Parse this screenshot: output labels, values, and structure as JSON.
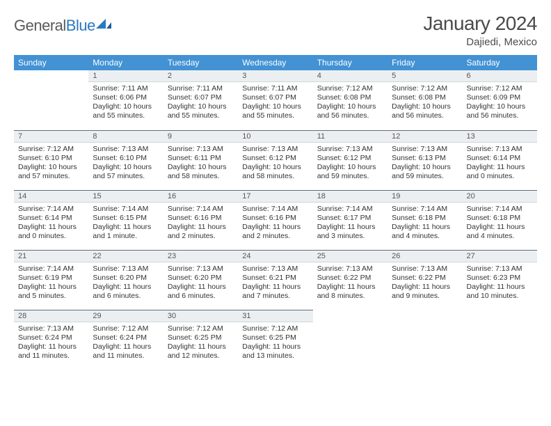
{
  "brand": {
    "word1": "General",
    "word2": "Blue"
  },
  "title": "January 2024",
  "location": "Dajiedi, Mexico",
  "colors": {
    "header_bg": "#4292d4",
    "header_text": "#ffffff",
    "daynum_bg": "#eceff1",
    "row_divider": "#5d6d7e",
    "logo_gray": "#5a5a5a",
    "logo_blue": "#2a7ac0",
    "page_bg": "#ffffff"
  },
  "weekdays": [
    "Sunday",
    "Monday",
    "Tuesday",
    "Wednesday",
    "Thursday",
    "Friday",
    "Saturday"
  ],
  "grid": [
    [
      null,
      {
        "n": "1",
        "sr": "Sunrise: 7:11 AM",
        "ss": "Sunset: 6:06 PM",
        "dl": "Daylight: 10 hours and 55 minutes."
      },
      {
        "n": "2",
        "sr": "Sunrise: 7:11 AM",
        "ss": "Sunset: 6:07 PM",
        "dl": "Daylight: 10 hours and 55 minutes."
      },
      {
        "n": "3",
        "sr": "Sunrise: 7:11 AM",
        "ss": "Sunset: 6:07 PM",
        "dl": "Daylight: 10 hours and 55 minutes."
      },
      {
        "n": "4",
        "sr": "Sunrise: 7:12 AM",
        "ss": "Sunset: 6:08 PM",
        "dl": "Daylight: 10 hours and 56 minutes."
      },
      {
        "n": "5",
        "sr": "Sunrise: 7:12 AM",
        "ss": "Sunset: 6:08 PM",
        "dl": "Daylight: 10 hours and 56 minutes."
      },
      {
        "n": "6",
        "sr": "Sunrise: 7:12 AM",
        "ss": "Sunset: 6:09 PM",
        "dl": "Daylight: 10 hours and 56 minutes."
      }
    ],
    [
      {
        "n": "7",
        "sr": "Sunrise: 7:12 AM",
        "ss": "Sunset: 6:10 PM",
        "dl": "Daylight: 10 hours and 57 minutes."
      },
      {
        "n": "8",
        "sr": "Sunrise: 7:13 AM",
        "ss": "Sunset: 6:10 PM",
        "dl": "Daylight: 10 hours and 57 minutes."
      },
      {
        "n": "9",
        "sr": "Sunrise: 7:13 AM",
        "ss": "Sunset: 6:11 PM",
        "dl": "Daylight: 10 hours and 58 minutes."
      },
      {
        "n": "10",
        "sr": "Sunrise: 7:13 AM",
        "ss": "Sunset: 6:12 PM",
        "dl": "Daylight: 10 hours and 58 minutes."
      },
      {
        "n": "11",
        "sr": "Sunrise: 7:13 AM",
        "ss": "Sunset: 6:12 PM",
        "dl": "Daylight: 10 hours and 59 minutes."
      },
      {
        "n": "12",
        "sr": "Sunrise: 7:13 AM",
        "ss": "Sunset: 6:13 PM",
        "dl": "Daylight: 10 hours and 59 minutes."
      },
      {
        "n": "13",
        "sr": "Sunrise: 7:13 AM",
        "ss": "Sunset: 6:14 PM",
        "dl": "Daylight: 11 hours and 0 minutes."
      }
    ],
    [
      {
        "n": "14",
        "sr": "Sunrise: 7:14 AM",
        "ss": "Sunset: 6:14 PM",
        "dl": "Daylight: 11 hours and 0 minutes."
      },
      {
        "n": "15",
        "sr": "Sunrise: 7:14 AM",
        "ss": "Sunset: 6:15 PM",
        "dl": "Daylight: 11 hours and 1 minute."
      },
      {
        "n": "16",
        "sr": "Sunrise: 7:14 AM",
        "ss": "Sunset: 6:16 PM",
        "dl": "Daylight: 11 hours and 2 minutes."
      },
      {
        "n": "17",
        "sr": "Sunrise: 7:14 AM",
        "ss": "Sunset: 6:16 PM",
        "dl": "Daylight: 11 hours and 2 minutes."
      },
      {
        "n": "18",
        "sr": "Sunrise: 7:14 AM",
        "ss": "Sunset: 6:17 PM",
        "dl": "Daylight: 11 hours and 3 minutes."
      },
      {
        "n": "19",
        "sr": "Sunrise: 7:14 AM",
        "ss": "Sunset: 6:18 PM",
        "dl": "Daylight: 11 hours and 4 minutes."
      },
      {
        "n": "20",
        "sr": "Sunrise: 7:14 AM",
        "ss": "Sunset: 6:18 PM",
        "dl": "Daylight: 11 hours and 4 minutes."
      }
    ],
    [
      {
        "n": "21",
        "sr": "Sunrise: 7:14 AM",
        "ss": "Sunset: 6:19 PM",
        "dl": "Daylight: 11 hours and 5 minutes."
      },
      {
        "n": "22",
        "sr": "Sunrise: 7:13 AM",
        "ss": "Sunset: 6:20 PM",
        "dl": "Daylight: 11 hours and 6 minutes."
      },
      {
        "n": "23",
        "sr": "Sunrise: 7:13 AM",
        "ss": "Sunset: 6:20 PM",
        "dl": "Daylight: 11 hours and 6 minutes."
      },
      {
        "n": "24",
        "sr": "Sunrise: 7:13 AM",
        "ss": "Sunset: 6:21 PM",
        "dl": "Daylight: 11 hours and 7 minutes."
      },
      {
        "n": "25",
        "sr": "Sunrise: 7:13 AM",
        "ss": "Sunset: 6:22 PM",
        "dl": "Daylight: 11 hours and 8 minutes."
      },
      {
        "n": "26",
        "sr": "Sunrise: 7:13 AM",
        "ss": "Sunset: 6:22 PM",
        "dl": "Daylight: 11 hours and 9 minutes."
      },
      {
        "n": "27",
        "sr": "Sunrise: 7:13 AM",
        "ss": "Sunset: 6:23 PM",
        "dl": "Daylight: 11 hours and 10 minutes."
      }
    ],
    [
      {
        "n": "28",
        "sr": "Sunrise: 7:13 AM",
        "ss": "Sunset: 6:24 PM",
        "dl": "Daylight: 11 hours and 11 minutes."
      },
      {
        "n": "29",
        "sr": "Sunrise: 7:12 AM",
        "ss": "Sunset: 6:24 PM",
        "dl": "Daylight: 11 hours and 11 minutes."
      },
      {
        "n": "30",
        "sr": "Sunrise: 7:12 AM",
        "ss": "Sunset: 6:25 PM",
        "dl": "Daylight: 11 hours and 12 minutes."
      },
      {
        "n": "31",
        "sr": "Sunrise: 7:12 AM",
        "ss": "Sunset: 6:25 PM",
        "dl": "Daylight: 11 hours and 13 minutes."
      },
      null,
      null,
      null
    ]
  ]
}
